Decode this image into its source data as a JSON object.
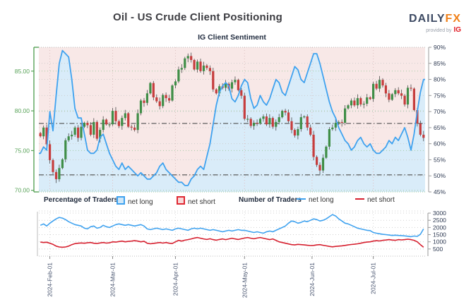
{
  "header": {
    "title": "Oil - US Crude Client Positioning",
    "brand": {
      "daily": "DAILY",
      "fx": "FX",
      "provided_by": "provided by",
      "ig": "IG"
    }
  },
  "subtitle": "IG Client Sentiment",
  "legend": {
    "percentage_label": "Percentage of Traders",
    "number_label": "Number of Traders",
    "pct_net_long": "net long",
    "pct_net_short": "net short",
    "num_net_long": "net long",
    "num_net_short": "net short"
  },
  "colors": {
    "pink_bg": "#f8e8e7",
    "blue_fill": "#d9ecf9",
    "blue_line": "#3fa2ef",
    "red_line": "#d6202f",
    "candle_up": "#3f8e47",
    "candle_down": "#c63d3d",
    "wick": "#4a4a4a",
    "left_axis_green": "#57a257",
    "right_axis_text": "#2e3a52",
    "ref_line": "#4f4f4f",
    "grid_green": "#9cc89c",
    "grid_gray": "#cccccc",
    "month_line": "#dcbfbf",
    "date_text": "#47536e",
    "frame_dot": "#b9b9b9"
  },
  "chart_data": [
    {
      "type": "candlestick+area",
      "title": "IG Client Sentiment",
      "description": "Daily US crude price candles with IG client net-long sentiment percentage overlay",
      "left_axis": {
        "label_values": [
          85,
          80,
          75,
          70
        ],
        "labels": [
          "85.00",
          "80.00",
          "75.00",
          "70.00"
        ],
        "range": [
          69.8,
          88.0
        ]
      },
      "right_axis": {
        "label_values": [
          90,
          85,
          80,
          75,
          70,
          65,
          60,
          55,
          50,
          45
        ],
        "labels": [
          "90%",
          "85%",
          "80%",
          "75%",
          "70%",
          "65%",
          "60%",
          "55%",
          "50%",
          "45%"
        ],
        "range": [
          45,
          90
        ]
      },
      "x_ticks": {
        "labels": [
          "2024-Feb-01",
          "2024-Mar-01",
          "2024-Apr-01",
          "2024-May-01",
          "2024-Jun-01",
          "2024-Jul-01"
        ],
        "indices": [
          3,
          23,
          43,
          65,
          86.5,
          106
        ]
      },
      "reference_lines_pct": [
        66.3,
        50.3
      ],
      "closes": [
        76.8,
        77.9,
        75.8,
        73.8,
        72.3,
        71.4,
        72.8,
        73.9,
        76.3,
        76.8,
        77.0,
        77.9,
        76.6,
        78.0,
        78.5,
        78.2,
        77.0,
        78.6,
        76.5,
        77.6,
        78.9,
        78.3,
        78.3,
        80.0,
        78.7,
        78.1,
        79.1,
        79.7,
        78.0,
        77.9,
        77.6,
        79.7,
        81.3,
        81.0,
        82.2,
        83.5,
        81.7,
        81.2,
        80.6,
        82.0,
        81.6,
        81.3,
        83.2,
        83.7,
        85.2,
        85.4,
        86.6,
        86.9,
        86.4,
        85.2,
        86.2,
        85.0,
        85.7,
        85.4,
        85.0,
        82.7,
        82.2,
        83.1,
        82.9,
        83.4,
        82.8,
        83.6,
        83.9,
        82.6,
        81.9,
        79.0,
        79.0,
        78.1,
        78.5,
        78.4,
        79.0,
        79.3,
        78.3,
        79.1,
        78.0,
        78.6,
        79.2,
        80.0,
        79.8,
        78.7,
        77.6,
        76.9,
        77.7,
        79.2,
        79.3,
        77.9,
        77.0,
        74.2,
        73.2,
        72.5,
        74.1,
        75.5,
        77.7,
        77.9,
        78.5,
        78.6,
        78.5,
        80.3,
        80.7,
        81.3,
        80.7,
        81.6,
        80.8,
        80.9,
        81.7,
        81.5,
        83.4,
        82.8,
        83.9,
        83.2,
        82.2,
        81.4,
        82.1,
        82.6,
        82.2,
        81.9,
        80.8,
        82.9,
        82.8,
        80.1,
        78.4,
        77.0,
        76.6
      ],
      "sentiment_pct": [
        57,
        59,
        58,
        70,
        64,
        75,
        85,
        89,
        88,
        87,
        80,
        71,
        68,
        68,
        63,
        58,
        57,
        57,
        58,
        62,
        63,
        60,
        57,
        55,
        53,
        52,
        54,
        52,
        53,
        52,
        51,
        50,
        51,
        50,
        49,
        49,
        50,
        51,
        53,
        54,
        52,
        51,
        50,
        49,
        48,
        48,
        47,
        47,
        49,
        50,
        52,
        53,
        52,
        56,
        60,
        66,
        72,
        76,
        78,
        79,
        78,
        74,
        73,
        75,
        78,
        80,
        79,
        74,
        71,
        72,
        75,
        73,
        72,
        74,
        77,
        80,
        79,
        76,
        75,
        78,
        81,
        84,
        83,
        80,
        79,
        82,
        85,
        88,
        88,
        85,
        81,
        77,
        73,
        70,
        68,
        65,
        63,
        61,
        60,
        58,
        59,
        61,
        62,
        60,
        59,
        60,
        58,
        57,
        57,
        58,
        59,
        61,
        60,
        62,
        61,
        63,
        65,
        62,
        58,
        63,
        70,
        76,
        80
      ]
    },
    {
      "type": "line",
      "description": "Number of traders net long and net short",
      "y_axis": {
        "label_values": [
          3000,
          2500,
          2000,
          1500,
          1000,
          500
        ],
        "labels": [
          "3000",
          "2500",
          "2000",
          "1500",
          "1000",
          "500"
        ],
        "range": [
          0,
          3100
        ]
      },
      "series": [
        {
          "name": "net long",
          "color": "#3fa2ef",
          "values": [
            2150,
            2250,
            2100,
            2300,
            2450,
            2600,
            2700,
            2650,
            2550,
            2400,
            2300,
            2200,
            2150,
            2100,
            1950,
            1900,
            2050,
            2100,
            1950,
            2000,
            2150,
            2050,
            2000,
            2100,
            2200,
            2250,
            2200,
            2150,
            2200,
            2150,
            2100,
            2150,
            2200,
            2100,
            1900,
            1850,
            1900,
            1950,
            1900,
            1850,
            1900,
            1850,
            1800,
            1900,
            1950,
            1900,
            1850,
            1800,
            1900,
            1950,
            1900,
            1950,
            1900,
            1850,
            1800,
            1850,
            1800,
            1750,
            1700,
            1750,
            1800,
            1750,
            1800,
            1850,
            1800,
            1800,
            1750,
            1700,
            1650,
            1700,
            1650,
            1600,
            1700,
            1750,
            1700,
            1800,
            1900,
            2000,
            2100,
            2300,
            2450,
            2400,
            2300,
            2350,
            2450,
            2400,
            2500,
            2600,
            2550,
            2450,
            2500,
            2600,
            2750,
            2900,
            2800,
            2600,
            2450,
            2300,
            2250,
            2150,
            2050,
            1950,
            1900,
            1850,
            1800,
            1780,
            1650,
            1600,
            1560,
            1520,
            1500,
            1470,
            1440,
            1460,
            1440,
            1430,
            1410,
            1390,
            1360,
            1400,
            1380,
            1520,
            1900
          ]
        },
        {
          "name": "net short",
          "color": "#d6202f",
          "values": [
            980,
            950,
            970,
            900,
            820,
            700,
            640,
            620,
            640,
            700,
            800,
            870,
            900,
            920,
            900,
            930,
            950,
            900,
            880,
            920,
            950,
            910,
            930,
            1000,
            980,
            1020,
            1050,
            1000,
            1030,
            1050,
            1080,
            1050,
            1000,
            1040,
            900,
            860,
            890,
            920,
            950,
            910,
            950,
            900,
            880,
            1000,
            1100,
            1050,
            1110,
            1150,
            1200,
            1260,
            1300,
            1250,
            1200,
            1160,
            1210,
            1150,
            1110,
            1160,
            1200,
            1150,
            1200,
            1250,
            1200,
            1160,
            1210,
            1260,
            1300,
            1250,
            1210,
            1260,
            1300,
            1250,
            1200,
            1150,
            1200,
            1100,
            1000,
            950,
            900,
            850,
            800,
            780,
            820,
            800,
            780,
            760,
            740,
            750,
            780,
            800,
            760,
            720,
            680,
            650,
            680,
            700,
            720,
            750,
            780,
            810,
            830,
            860,
            900,
            950,
            980,
            1000,
            1050,
            1080,
            1060,
            1100,
            1120,
            1150,
            1120,
            1100,
            1150,
            1130,
            1150,
            1180,
            1150,
            1100,
            1000,
            800,
            620
          ]
        }
      ]
    }
  ]
}
